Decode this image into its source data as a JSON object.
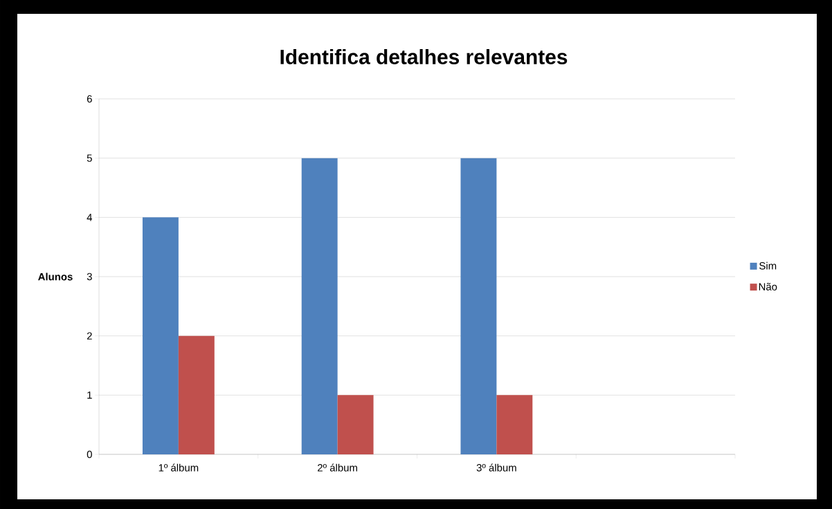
{
  "chart_data": {
    "type": "bar",
    "title": "Identifica detalhes relevantes",
    "ylabel": "Alunos",
    "categories": [
      "1º álbum",
      "2º álbum",
      "3º álbum",
      null
    ],
    "series": [
      {
        "name": "Sim",
        "color": "#4f81bd",
        "values": [
          4,
          5,
          5,
          null
        ]
      },
      {
        "name": "Não",
        "color": "#c0504d",
        "values": [
          2,
          1,
          1,
          null
        ]
      }
    ],
    "ylim": [
      0,
      6
    ],
    "yticks": [
      0,
      1,
      2,
      3,
      4,
      5,
      6
    ],
    "grid": "y",
    "legend": "right"
  }
}
